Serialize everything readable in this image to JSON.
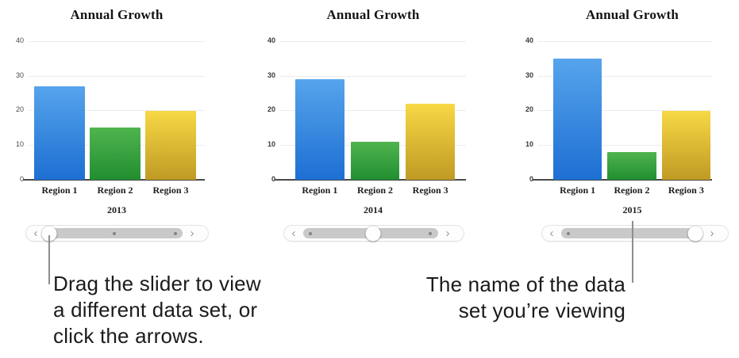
{
  "figure": {
    "background": "#ffffff"
  },
  "palette": {
    "bar_gradients": [
      {
        "top": "#56a4ec",
        "bottom": "#1d6fd3"
      },
      {
        "top": "#50b44e",
        "bottom": "#218e30"
      },
      {
        "top": "#f7d845",
        "bottom": "#c09a24"
      }
    ],
    "axis_line": "#4a4a4a",
    "gridline": "#ececec",
    "slider_track": "#c9c9c9",
    "callout_line": "#8e8e8e",
    "note_text": "#1b1b1d"
  },
  "chart_data": [
    {
      "type": "bar",
      "title": "Annual Growth",
      "dataset_label": "2013",
      "categories": [
        "Region 1",
        "Region 2",
        "Region 3"
      ],
      "values": [
        27,
        15,
        20
      ],
      "ylim": [
        0,
        40
      ],
      "yticks": [
        40,
        30,
        20,
        10,
        0
      ],
      "grid": true,
      "legend": "none",
      "slider": {
        "active_index": 0,
        "thumb_pct": 3,
        "dots_pct": [
          50,
          95
        ],
        "prev_arrow": "‹",
        "next_arrow": "›"
      }
    },
    {
      "type": "bar",
      "title": "Annual Growth",
      "dataset_label": "2014",
      "categories": [
        "Region 1",
        "Region 2",
        "Region 3"
      ],
      "values": [
        29,
        11,
        22
      ],
      "ylim": [
        0,
        40
      ],
      "yticks": [
        40,
        30,
        20,
        10,
        0
      ],
      "grid": true,
      "legend": "none",
      "slider": {
        "active_index": 1,
        "thumb_pct": 52,
        "dots_pct": [
          5,
          94
        ],
        "prev_arrow": "‹",
        "next_arrow": "›"
      }
    },
    {
      "type": "bar",
      "title": "Annual Growth",
      "dataset_label": "2015",
      "categories": [
        "Region 1",
        "Region 2",
        "Region 3"
      ],
      "values": [
        35,
        8,
        20
      ],
      "ylim": [
        0,
        40
      ],
      "yticks": [
        40,
        30,
        20,
        10,
        0
      ],
      "grid": true,
      "legend": "none",
      "slider": {
        "active_index": 2,
        "thumb_pct": 95,
        "dots_pct": [
          5
        ],
        "prev_arrow": "‹",
        "next_arrow": "›"
      }
    }
  ],
  "annotations": {
    "slider_note": "Drag the slider to view\na different data set, or\nclick the arrows.",
    "dataset_name_note": "The name of the data\nset you’re viewing"
  }
}
